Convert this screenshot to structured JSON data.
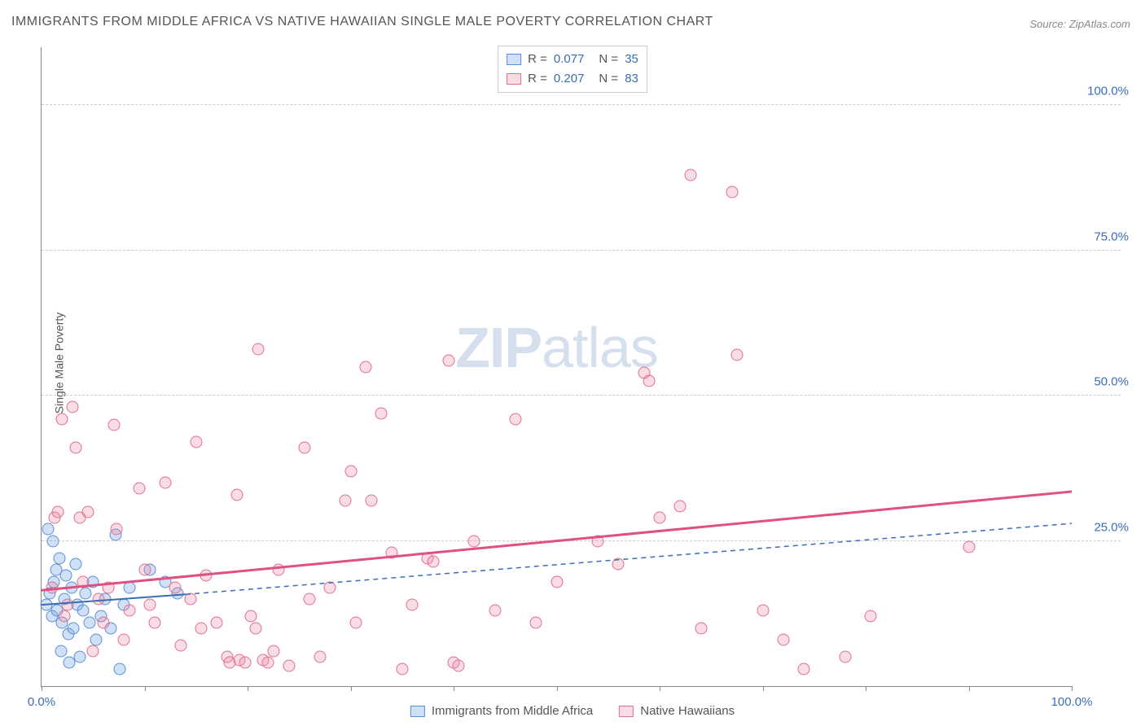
{
  "title": "IMMIGRANTS FROM MIDDLE AFRICA VS NATIVE HAWAIIAN SINGLE MALE POVERTY CORRELATION CHART",
  "source": "Source: ZipAtlas.com",
  "ylabel": "Single Male Poverty",
  "watermark_bold": "ZIP",
  "watermark_rest": "atlas",
  "chart": {
    "type": "scatter",
    "xlim": [
      0,
      100
    ],
    "ylim": [
      0,
      110
    ],
    "xticks": [
      0,
      10,
      20,
      30,
      40,
      50,
      60,
      70,
      80,
      90,
      100
    ],
    "xticks_labeled": [
      0,
      100
    ],
    "yticks": [
      25,
      50,
      75,
      100
    ],
    "xtick_format": "percent1",
    "ytick_format": "percent1",
    "background": "#ffffff",
    "grid_color": "#cccccc",
    "axis_color": "#888888",
    "marker_radius": 7.5,
    "series": [
      {
        "key": "blue",
        "label": "Immigrants from Middle Africa",
        "fill": "rgba(120,165,225,0.35)",
        "stroke": "#5a8fd6",
        "line_color": "#3b6db5",
        "line_width": 2,
        "dash_extrapolate": "5,5",
        "R": "0.077",
        "N": "35",
        "trend": {
          "x0": 0,
          "y0": 14.0,
          "x1_solid": 14,
          "y1_solid": 15.8,
          "x1": 100,
          "y1": 28.0
        },
        "points": [
          [
            0.5,
            14
          ],
          [
            0.8,
            16
          ],
          [
            1.0,
            12
          ],
          [
            1.2,
            18
          ],
          [
            1.4,
            20
          ],
          [
            1.5,
            13
          ],
          [
            1.7,
            22
          ],
          [
            2.0,
            11
          ],
          [
            2.2,
            15
          ],
          [
            2.4,
            19
          ],
          [
            2.6,
            9
          ],
          [
            2.9,
            17
          ],
          [
            3.1,
            10
          ],
          [
            3.3,
            21
          ],
          [
            3.5,
            14
          ],
          [
            3.7,
            5
          ],
          [
            0.6,
            27
          ],
          [
            1.1,
            25
          ],
          [
            4.0,
            13
          ],
          [
            4.3,
            16
          ],
          [
            4.7,
            11
          ],
          [
            5.0,
            18
          ],
          [
            5.3,
            8
          ],
          [
            5.8,
            12
          ],
          [
            6.2,
            15
          ],
          [
            6.7,
            10
          ],
          [
            7.2,
            26
          ],
          [
            7.6,
            3
          ],
          [
            8.0,
            14
          ],
          [
            8.5,
            17
          ],
          [
            1.9,
            6
          ],
          [
            2.7,
            4
          ],
          [
            10.5,
            20
          ],
          [
            12.0,
            18
          ],
          [
            13.2,
            16
          ]
        ]
      },
      {
        "key": "pink",
        "label": "Native Hawaiians",
        "fill": "rgba(235,140,165,0.30)",
        "stroke": "#e0708f",
        "line_color": "#e05080",
        "line_width": 3,
        "R": "0.207",
        "N": "83",
        "trend": {
          "x0": 0,
          "y0": 16.5,
          "x1": 100,
          "y1": 33.5
        },
        "points": [
          [
            1,
            17
          ],
          [
            1.3,
            29
          ],
          [
            1.6,
            30
          ],
          [
            2,
            46
          ],
          [
            2.5,
            14
          ],
          [
            3,
            48
          ],
          [
            3.3,
            41
          ],
          [
            3.7,
            29
          ],
          [
            4,
            18
          ],
          [
            2.2,
            12
          ],
          [
            4.5,
            30
          ],
          [
            5,
            6
          ],
          [
            5.5,
            15
          ],
          [
            6,
            11
          ],
          [
            6.5,
            17
          ],
          [
            7,
            45
          ],
          [
            7.3,
            27
          ],
          [
            8,
            8
          ],
          [
            8.5,
            13
          ],
          [
            9.5,
            34
          ],
          [
            10,
            20
          ],
          [
            10.5,
            14
          ],
          [
            11,
            11
          ],
          [
            12,
            35
          ],
          [
            13,
            17
          ],
          [
            13.5,
            7
          ],
          [
            14.5,
            15
          ],
          [
            15,
            42
          ],
          [
            15.5,
            10
          ],
          [
            16,
            19
          ],
          [
            17,
            11
          ],
          [
            18,
            5
          ],
          [
            18.3,
            4
          ],
          [
            19,
            33
          ],
          [
            19.2,
            4.5
          ],
          [
            19.8,
            4
          ],
          [
            20.3,
            12
          ],
          [
            20.8,
            10
          ],
          [
            21,
            58
          ],
          [
            21.5,
            4.5
          ],
          [
            22,
            4
          ],
          [
            22.5,
            6
          ],
          [
            23,
            20
          ],
          [
            24,
            3.5
          ],
          [
            25.5,
            41
          ],
          [
            26,
            15
          ],
          [
            27,
            5
          ],
          [
            28,
            17
          ],
          [
            29.5,
            32
          ],
          [
            30,
            37
          ],
          [
            30.5,
            11
          ],
          [
            31.5,
            55
          ],
          [
            32,
            32
          ],
          [
            33,
            47
          ],
          [
            34,
            23
          ],
          [
            35,
            3
          ],
          [
            36,
            14
          ],
          [
            37.5,
            22
          ],
          [
            38,
            21.5
          ],
          [
            39.5,
            56
          ],
          [
            40,
            4
          ],
          [
            40.5,
            3.5
          ],
          [
            42,
            25
          ],
          [
            44,
            13
          ],
          [
            46,
            46
          ],
          [
            48,
            11
          ],
          [
            50,
            18
          ],
          [
            54,
            25
          ],
          [
            56,
            21
          ],
          [
            58.5,
            54
          ],
          [
            59,
            52.5
          ],
          [
            60,
            29
          ],
          [
            62,
            31
          ],
          [
            63,
            88
          ],
          [
            64,
            10
          ],
          [
            67,
            85
          ],
          [
            67.5,
            57
          ],
          [
            70,
            13
          ],
          [
            72,
            8
          ],
          [
            74,
            3
          ],
          [
            78,
            5
          ],
          [
            80.5,
            12
          ],
          [
            90,
            24
          ]
        ]
      }
    ]
  },
  "legend_top_rows": [
    {
      "swatch_fill": "rgba(120,165,225,0.35)",
      "swatch_stroke": "#5a8fd6",
      "R": "0.077",
      "N": "35"
    },
    {
      "swatch_fill": "rgba(235,140,165,0.30)",
      "swatch_stroke": "#e0708f",
      "R": "0.207",
      "N": "83"
    }
  ],
  "legend_bottom": [
    {
      "swatch_fill": "rgba(120,165,225,0.35)",
      "swatch_stroke": "#5a8fd6",
      "label": "Immigrants from Middle Africa"
    },
    {
      "swatch_fill": "rgba(235,140,165,0.30)",
      "swatch_stroke": "#e0708f",
      "label": "Native Hawaiians"
    }
  ]
}
